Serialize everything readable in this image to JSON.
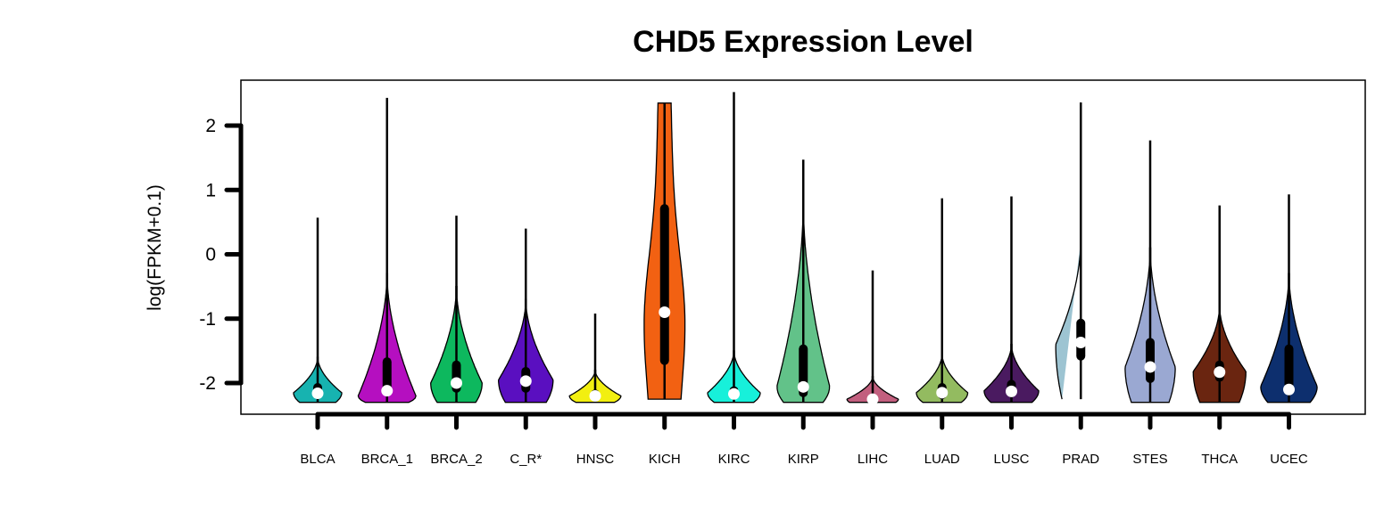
{
  "chart_data": {
    "type": "violin",
    "title": "CHD5 Expression Level",
    "ylabel": "log(FPKM+0.1)",
    "xlabel": "",
    "ylim": [
      -2.5,
      2.7
    ],
    "yticks": [
      -2,
      -1,
      0,
      1,
      2
    ],
    "grid": false,
    "legend": "none",
    "categories": [
      "BLCA",
      "BRCA_1",
      "BRCA_2",
      "C_R*",
      "HNSC",
      "KICH",
      "KIRC",
      "KIRP",
      "LIHC",
      "LUAD",
      "LUSC",
      "PRAD",
      "STES",
      "THCA",
      "UCEC"
    ],
    "series": [
      {
        "category": "BLCA",
        "color": "#17b3b0",
        "min": -2.3,
        "q1": -2.25,
        "median": -2.16,
        "q3": -2.0,
        "max": 0.57,
        "neck": -1.6,
        "width": 0.75,
        "peak": -2.15
      },
      {
        "category": "BRCA_1",
        "color": "#b50fc0",
        "min": -2.3,
        "q1": -2.2,
        "median": -2.12,
        "q3": -1.6,
        "max": 2.43,
        "neck": -0.3,
        "width": 0.9,
        "peak": -2.2
      },
      {
        "category": "BRCA_2",
        "color": "#0db85e",
        "min": -2.3,
        "q1": -2.15,
        "median": -2.0,
        "q3": -1.65,
        "max": 0.6,
        "neck": -0.5,
        "width": 0.8,
        "peak": -2.0
      },
      {
        "category": "C_R*",
        "color": "#5a0fc0",
        "min": -2.3,
        "q1": -2.15,
        "median": -1.97,
        "q3": -1.75,
        "max": 0.4,
        "neck": -0.7,
        "width": 0.85,
        "peak": -1.95
      },
      {
        "category": "HNSC",
        "color": "#f2ef10",
        "min": -2.3,
        "q1": -2.25,
        "median": -2.2,
        "q3": -2.1,
        "max": -0.92,
        "neck": -1.8,
        "width": 0.8,
        "peak": -2.2
      },
      {
        "category": "KICH",
        "color": "#f26112",
        "min": -2.25,
        "q1": -1.72,
        "median": -0.9,
        "q3": 0.78,
        "max": 2.35,
        "neck": 2.35,
        "width": 0.68,
        "peak": -1.0
      },
      {
        "category": "KIRC",
        "color": "#17f0da",
        "min": -2.3,
        "q1": -2.25,
        "median": -2.17,
        "q3": -2.05,
        "max": 2.52,
        "neck": -1.5,
        "width": 0.82,
        "peak": -2.15
      },
      {
        "category": "KIRP",
        "color": "#62c289",
        "min": -2.3,
        "q1": -2.22,
        "median": -2.06,
        "q3": -1.4,
        "max": 1.47,
        "neck": 0.8,
        "width": 0.82,
        "peak": -2.05
      },
      {
        "category": "LIHC",
        "color": "#c25f7e",
        "min": -2.3,
        "q1": -2.28,
        "median": -2.25,
        "q3": -2.2,
        "max": -0.25,
        "neck": -1.9,
        "width": 0.8,
        "peak": -2.25
      },
      {
        "category": "LUAD",
        "color": "#93bb60",
        "min": -2.3,
        "q1": -2.25,
        "median": -2.15,
        "q3": -2.0,
        "max": 0.87,
        "neck": -1.55,
        "width": 0.8,
        "peak": -2.15
      },
      {
        "category": "LUSC",
        "color": "#4a1a60",
        "min": -2.3,
        "q1": -2.22,
        "median": -2.13,
        "q3": -1.95,
        "max": 0.9,
        "neck": -1.4,
        "width": 0.85,
        "peak": -2.12
      },
      {
        "category": "PRAD",
        "color": "#9dc4d2",
        "min": -2.25,
        "q1": -1.65,
        "median": -1.37,
        "q3": -1.0,
        "max": 2.36,
        "neck": 0.2,
        "width": 0.78,
        "peak": -1.4
      },
      {
        "category": "STES",
        "color": "#9aa8d2",
        "min": -2.3,
        "q1": -2.0,
        "median": -1.75,
        "q3": -1.3,
        "max": 1.77,
        "neck": 0.1,
        "width": 0.78,
        "peak": -1.75
      },
      {
        "category": "THCA",
        "color": "#6a2510",
        "min": -2.3,
        "q1": -1.98,
        "median": -1.83,
        "q3": -1.65,
        "max": 0.76,
        "neck": -0.8,
        "width": 0.82,
        "peak": -1.82
      },
      {
        "category": "UCEC",
        "color": "#0d2f6e",
        "min": -2.3,
        "q1": -2.18,
        "median": -2.1,
        "q3": -1.4,
        "max": 0.93,
        "neck": -0.3,
        "width": 0.88,
        "peak": -2.05
      }
    ]
  }
}
